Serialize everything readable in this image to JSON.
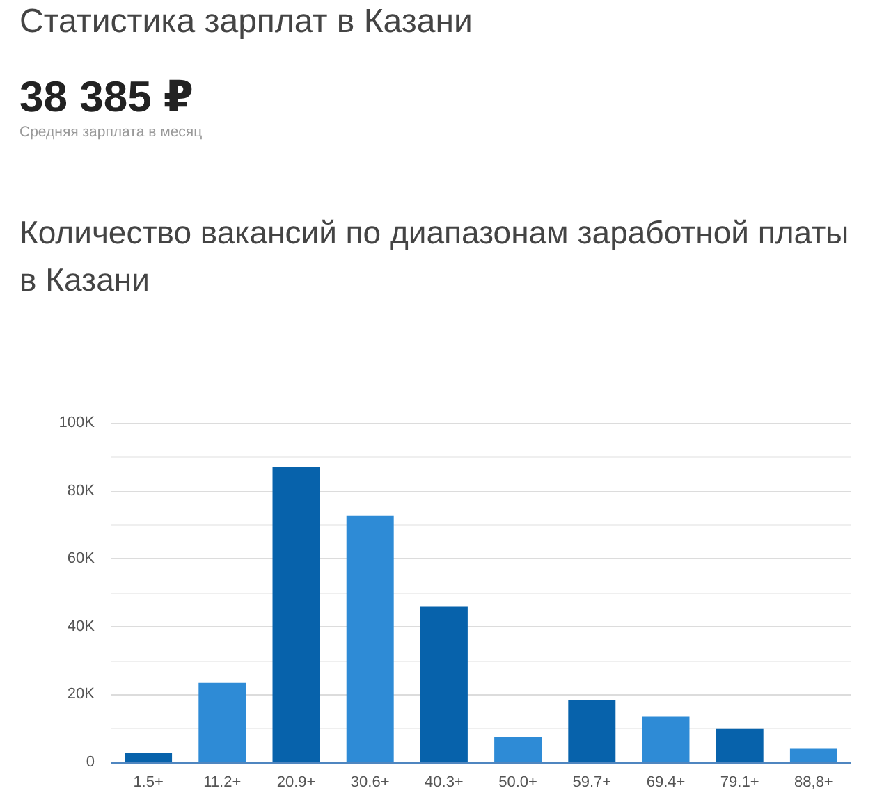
{
  "chart_data": {
    "type": "bar",
    "title": "Статистика зарплат в Казани",
    "subtitle": "Количество вакансий по диапазонам заработной платы в Казани",
    "annotations": [
      "38 385 ₽",
      "Средняя зарплата в месяц"
    ],
    "categories": [
      "1.5+",
      "11.2+",
      "20.9+",
      "30.6+",
      "40.3+",
      "50.0+",
      "59.7+",
      "69.4+",
      "79.1+",
      "88,8+"
    ],
    "values": [
      2700,
      23400,
      87100,
      72600,
      46000,
      7500,
      18400,
      13400,
      9900,
      4000
    ],
    "colors": [
      "#0762ab",
      "#2e8bd6",
      "#0762ab",
      "#2e8bd6",
      "#0762ab",
      "#2e8bd6",
      "#0762ab",
      "#2e8bd6",
      "#0762ab",
      "#2e8bd6"
    ],
    "ylim": [
      0,
      100000
    ],
    "yticks": [
      0,
      {
        "value": 10000,
        "label": null
      },
      {
        "value": 20000,
        "label": "20K"
      },
      {
        "value": 30000,
        "label": null
      },
      {
        "value": 40000,
        "label": "40K"
      },
      {
        "value": 50000,
        "label": null
      },
      {
        "value": 60000,
        "label": "60K"
      },
      {
        "value": 70000,
        "label": null
      },
      {
        "value": 80000,
        "label": "80K"
      },
      {
        "value": 90000,
        "label": null
      },
      {
        "value": 100000,
        "label": "100K"
      }
    ],
    "grid": "y"
  }
}
